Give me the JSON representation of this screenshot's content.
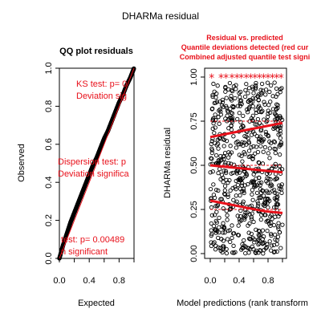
{
  "window_title": "DHARMa residual",
  "chart_data": [
    {
      "type": "scatter",
      "title": "QQ plot residuals",
      "xlabel": "Expected",
      "ylabel": "Observed",
      "xlim": [
        0,
        1
      ],
      "ylim": [
        0,
        1
      ],
      "xticks": [
        "0.0",
        "0.4",
        "0.8"
      ],
      "yticks": [
        "0.0",
        "0.2",
        "0.4",
        "0.6",
        "0.8",
        "1.0"
      ],
      "reference_line": {
        "from": [
          0,
          0
        ],
        "to": [
          1,
          1
        ],
        "color": "#e8101a"
      },
      "qq_points": [
        [
          0.0,
          0.0
        ],
        [
          0.05,
          0.07
        ],
        [
          0.1,
          0.13
        ],
        [
          0.15,
          0.19
        ],
        [
          0.2,
          0.24
        ],
        [
          0.25,
          0.29
        ],
        [
          0.3,
          0.34
        ],
        [
          0.35,
          0.39
        ],
        [
          0.4,
          0.44
        ],
        [
          0.45,
          0.49
        ],
        [
          0.5,
          0.53
        ],
        [
          0.55,
          0.58
        ],
        [
          0.6,
          0.63
        ],
        [
          0.65,
          0.67
        ],
        [
          0.7,
          0.72
        ],
        [
          0.75,
          0.77
        ],
        [
          0.8,
          0.82
        ],
        [
          0.85,
          0.86
        ],
        [
          0.9,
          0.91
        ],
        [
          0.95,
          0.95
        ],
        [
          1.0,
          1.0
        ]
      ],
      "annotations": [
        {
          "text": "KS test: p= 0"
        },
        {
          "text": "Deviation  sig"
        },
        {
          "text": "Dispersion test: p"
        },
        {
          "text": "Deviation  significa"
        },
        {
          "text": "test: p= 0.00489"
        },
        {
          "text": "n  significant"
        }
      ]
    },
    {
      "type": "scatter",
      "subtitle_lines": [
        "Residual vs. predicted",
        "Quantile deviations detected (red cur",
        "Combined adjusted quantile test signi"
      ],
      "xlabel": "Model predictions (rank transform",
      "ylabel": "DHARMa residual",
      "xlim": [
        0,
        1
      ],
      "ylim": [
        0,
        1
      ],
      "xticks": [
        "0.0",
        "0.4",
        "0.8"
      ],
      "yticks": [
        "0.00",
        "0.25",
        "0.50",
        "0.75",
        "1.00"
      ],
      "quantile_lines": [
        {
          "quantile": 0.25,
          "y": [
            0.3,
            0.28,
            0.26,
            0.24,
            0.23
          ]
        },
        {
          "quantile": 0.5,
          "y": [
            0.5,
            0.49,
            0.48,
            0.47,
            0.46
          ]
        },
        {
          "quantile": 0.75,
          "y": [
            0.66,
            0.68,
            0.7,
            0.72,
            0.74
          ]
        }
      ],
      "quantile_x": [
        0.0,
        0.25,
        0.5,
        0.75,
        1.0
      ],
      "outlier_stars_x": [
        0.02,
        0.15,
        0.22,
        0.3,
        0.37,
        0.43,
        0.5,
        0.56,
        0.62,
        0.68,
        0.74,
        0.8,
        0.86,
        0.92,
        0.98
      ],
      "outlier_y": 1.0,
      "point_count": 700
    }
  ]
}
